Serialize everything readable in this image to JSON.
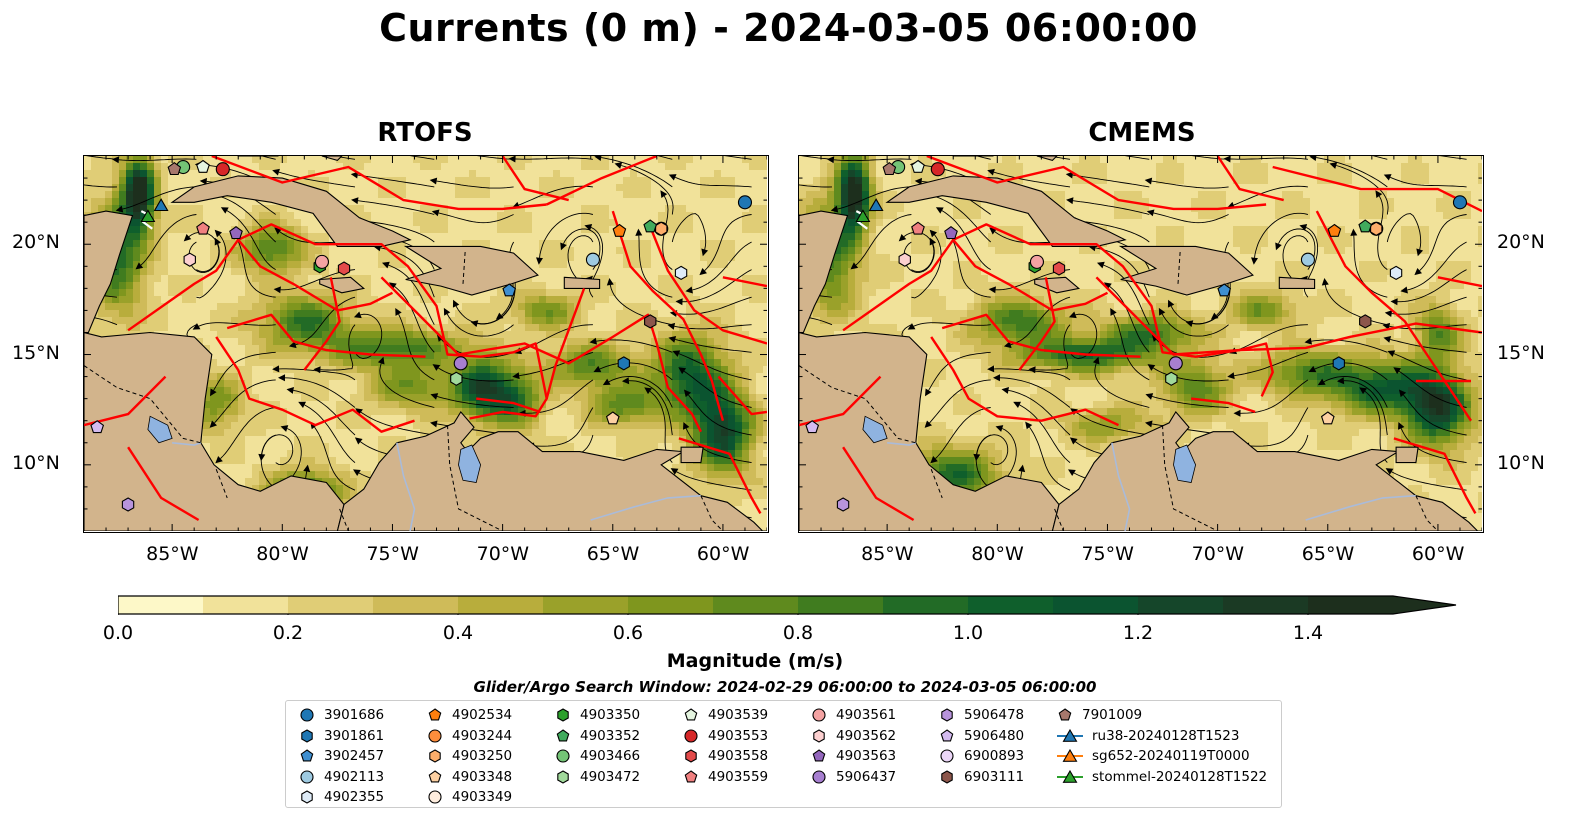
{
  "figure": {
    "title": "Currents (0 m) - 2024-03-05 06:00:00"
  },
  "panels": [
    {
      "title": "RTOFS"
    },
    {
      "title": "CMEMS"
    }
  ],
  "map": {
    "lon_range": [
      -89,
      -58
    ],
    "lat_range": [
      7,
      24
    ],
    "lon_ticks": [
      "85°W",
      "80°W",
      "75°W",
      "70°W",
      "65°W",
      "60°W"
    ],
    "lat_ticks": [
      "20°N",
      "15°N",
      "10°N"
    ],
    "colors": {
      "land": "#d2b48c",
      "boundary": "#ff0000",
      "rivers": "#aabbd9",
      "streamlines": "#000000"
    }
  },
  "colorbar": {
    "title": "Magnitude (m/s)",
    "ticks": [
      "0.0",
      "0.2",
      "0.4",
      "0.6",
      "0.8",
      "1.0",
      "1.2",
      "1.4"
    ],
    "range": [
      0,
      1.5
    ],
    "colors": [
      "#fdf8c8",
      "#f1e29a",
      "#e0cd76",
      "#cfbb59",
      "#b8ad3c",
      "#9aa12a",
      "#7f961e",
      "#5f8a1e",
      "#407c1f",
      "#226b26",
      "#0f5f2c",
      "#0b5430",
      "#15462a",
      "#1b3a24",
      "#1d2f1d"
    ]
  },
  "search_window": "Glider/Argo Search Window: 2024-02-29 06:00:00 to 2024-03-05 06:00:00",
  "legend": [
    {
      "label": "3901686",
      "marker": "circle",
      "color": "#1f77b4"
    },
    {
      "label": "3901861",
      "marker": "hexagon",
      "color": "#1f77b4"
    },
    {
      "label": "3902457",
      "marker": "pentagon",
      "color": "#3f8fd0"
    },
    {
      "label": "4902113",
      "marker": "circle",
      "color": "#9ecae1"
    },
    {
      "label": "4902355",
      "marker": "hexagon",
      "color": "#deebf7"
    },
    {
      "label": "4902534",
      "marker": "pentagon",
      "color": "#ff7f0e"
    },
    {
      "label": "4903244",
      "marker": "circle",
      "color": "#fd8d3c"
    },
    {
      "label": "4903250",
      "marker": "hexagon",
      "color": "#fdae6b"
    },
    {
      "label": "4903348",
      "marker": "pentagon",
      "color": "#fdd0a2"
    },
    {
      "label": "4903349",
      "marker": "circle",
      "color": "#feedde"
    },
    {
      "label": "4903350",
      "marker": "hexagon",
      "color": "#2ca02c"
    },
    {
      "label": "4903352",
      "marker": "pentagon",
      "color": "#41ab5d"
    },
    {
      "label": "4903466",
      "marker": "circle",
      "color": "#74c476"
    },
    {
      "label": "4903472",
      "marker": "hexagon",
      "color": "#a1d99b"
    },
    {
      "label": "4903539",
      "marker": "pentagon",
      "color": "#e5f5e0"
    },
    {
      "label": "4903553",
      "marker": "circle",
      "color": "#d62728"
    },
    {
      "label": "4903558",
      "marker": "hexagon",
      "color": "#e34a4a"
    },
    {
      "label": "4903559",
      "marker": "pentagon",
      "color": "#f08080"
    },
    {
      "label": "4903561",
      "marker": "circle",
      "color": "#f4a3a3"
    },
    {
      "label": "4903562",
      "marker": "hexagon",
      "color": "#fcd0d0"
    },
    {
      "label": "4903563",
      "marker": "pentagon",
      "color": "#9467bd"
    },
    {
      "label": "5906437",
      "marker": "circle",
      "color": "#a77fd0"
    },
    {
      "label": "5906478",
      "marker": "hexagon",
      "color": "#b894dc"
    },
    {
      "label": "5906480",
      "marker": "pentagon",
      "color": "#d4bbf0"
    },
    {
      "label": "6900893",
      "marker": "circle",
      "color": "#ebd6f7"
    },
    {
      "label": "6903111",
      "marker": "hexagon",
      "color": "#8c564b"
    },
    {
      "label": "7901009",
      "marker": "pentagon",
      "color": "#a8786c"
    },
    {
      "label": "ru38-20240128T1523",
      "marker": "triangle-line",
      "color": "#1f77b4"
    },
    {
      "label": "sg652-20240119T0000",
      "marker": "triangle-line",
      "color": "#ff7f0e"
    },
    {
      "label": "stommel-20240128T1522",
      "marker": "triangle-line",
      "color": "#2ca02c"
    }
  ],
  "floats": [
    {
      "id": "3901686",
      "lon": -59,
      "lat": 21.9
    },
    {
      "id": "3901861",
      "lon": -64.5,
      "lat": 14.6
    },
    {
      "id": "3902457",
      "lon": -69.7,
      "lat": 17.9
    },
    {
      "id": "4902113",
      "lon": -65.9,
      "lat": 19.3
    },
    {
      "id": "4902355",
      "lon": -61.9,
      "lat": 18.7
    },
    {
      "id": "4902534",
      "lon": -64.7,
      "lat": 20.6
    },
    {
      "id": "4903244",
      "lon": -62.8,
      "lat": 20.7
    },
    {
      "id": "4903250",
      "lon": -62.8,
      "lat": 20.7
    },
    {
      "id": "4903348",
      "lon": -65.0,
      "lat": 12.1
    },
    {
      "id": "4903350",
      "lon": -78.3,
      "lat": 19.0
    },
    {
      "id": "4903352",
      "lon": -63.3,
      "lat": 20.8
    },
    {
      "id": "4903466",
      "lon": -84.5,
      "lat": 23.5
    },
    {
      "id": "4903472",
      "lon": -72.1,
      "lat": 13.9
    },
    {
      "id": "4903539",
      "lon": -83.6,
      "lat": 23.5
    },
    {
      "id": "4903553",
      "lon": -82.7,
      "lat": 23.4
    },
    {
      "id": "4903558",
      "lon": -77.2,
      "lat": 18.9
    },
    {
      "id": "4903559",
      "lon": -83.6,
      "lat": 20.7
    },
    {
      "id": "4903561",
      "lon": -78.2,
      "lat": 19.2
    },
    {
      "id": "4903562",
      "lon": -84.2,
      "lat": 19.3
    },
    {
      "id": "4903563",
      "lon": -82.1,
      "lat": 20.5
    },
    {
      "id": "5906437",
      "lon": -71.9,
      "lat": 14.6
    },
    {
      "id": "5906478",
      "lon": -87.0,
      "lat": 8.2
    },
    {
      "id": "5906480",
      "lon": -88.4,
      "lat": 11.7
    },
    {
      "id": "6903111",
      "lon": -63.3,
      "lat": 16.5
    },
    {
      "id": "7901009",
      "lon": -84.9,
      "lat": 23.4
    }
  ],
  "gliders": [
    {
      "id": "ru38-20240128T1523",
      "lon": -85.5,
      "lat": 21.7
    },
    {
      "id": "stommel-20240128T1522",
      "lon": -86.1,
      "lat": 21.2
    }
  ]
}
